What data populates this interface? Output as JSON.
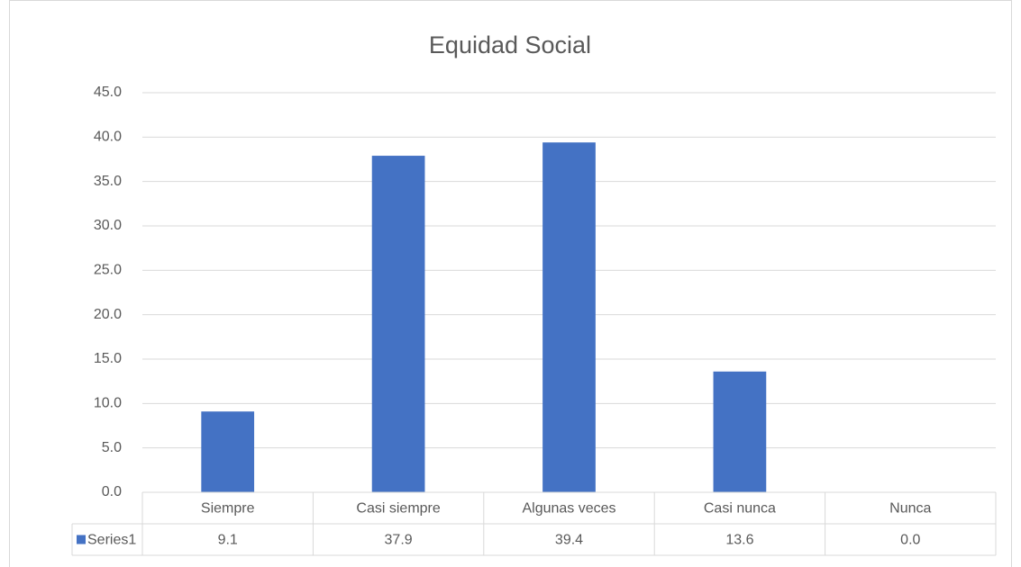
{
  "chart_data": {
    "type": "bar",
    "title": "Equidad Social",
    "categories": [
      "Siempre",
      "Casi siempre",
      "Algunas veces",
      "Casi nunca",
      "Nunca"
    ],
    "series": [
      {
        "name": "Series1",
        "color": "#4472c4",
        "values": [
          9.1,
          37.9,
          39.4,
          13.6,
          0.0
        ],
        "value_labels": [
          "9.1",
          "37.9",
          "39.4",
          "13.6",
          "0.0"
        ]
      }
    ],
    "ylim": [
      0,
      45
    ],
    "yticks": [
      {
        "value": 0,
        "label": "0.0"
      },
      {
        "value": 5,
        "label": "5.0"
      },
      {
        "value": 10,
        "label": "10.0"
      },
      {
        "value": 15,
        "label": "15.0"
      },
      {
        "value": 20,
        "label": "20.0"
      },
      {
        "value": 25,
        "label": "25.0"
      },
      {
        "value": 30,
        "label": "30.0"
      },
      {
        "value": 35,
        "label": "35.0"
      },
      {
        "value": 40,
        "label": "40.0"
      },
      {
        "value": 45,
        "label": "45.0"
      }
    ],
    "grid": true,
    "data_table": true
  }
}
